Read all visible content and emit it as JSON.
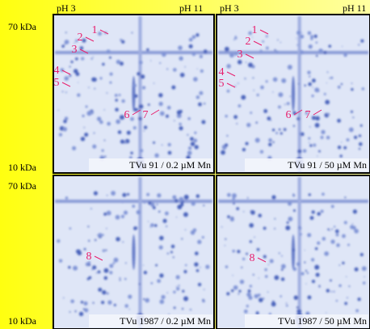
{
  "ph_labels": [
    {
      "left": "pH 3",
      "right": "pH 11"
    },
    {
      "left": "pH 3",
      "right": "pH 11"
    }
  ],
  "mass_labels": [
    {
      "top": "70 kDa",
      "bottom": "10 kDa"
    },
    {
      "top": "70 kDa",
      "bottom": "10 kDa"
    }
  ],
  "panels": [
    {
      "caption": "TVu 91 / 0.2 µM Mn",
      "spots": [
        "1",
        "2",
        "3",
        "4",
        "5",
        "6",
        "7"
      ]
    },
    {
      "caption": "TVu 91 / 50 µM Mn",
      "spots": [
        "1",
        "2",
        "3",
        "4",
        "5",
        "6",
        "7"
      ]
    },
    {
      "caption": "TVu 1987 / 0.2 µM Mn",
      "spots": [
        "8"
      ]
    },
    {
      "caption": "TVu 1987 / 50 µM Mn",
      "spots": [
        "8"
      ]
    }
  ]
}
